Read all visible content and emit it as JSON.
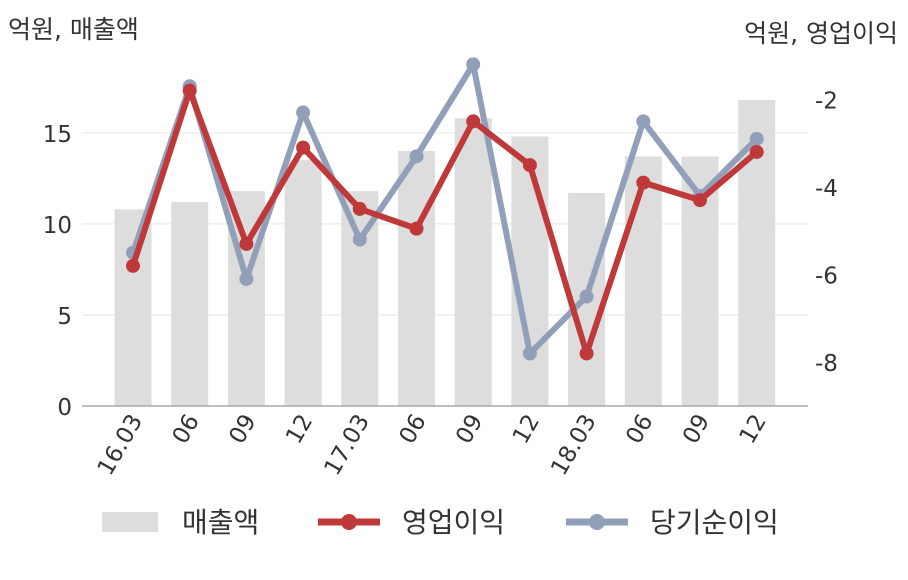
{
  "chart_data": {
    "type": "bar",
    "left_axis_label": "억원, 매출액",
    "right_axis_label": "억원, 영업이익",
    "categories": [
      "16.03",
      "06",
      "09",
      "12",
      "17.03",
      "06",
      "09",
      "12",
      "18.03",
      "06",
      "09",
      "12"
    ],
    "y_left": {
      "min": 0,
      "max": 19,
      "ticks": [
        0,
        5,
        10,
        15
      ]
    },
    "y_right": {
      "min": -9,
      "max": -1.1,
      "ticks": [
        -8,
        -6,
        -4,
        -2
      ]
    },
    "grid": true,
    "legend_position": "bottom",
    "series": [
      {
        "name": "매출액",
        "kind": "bar",
        "axis": "left",
        "color": "#dddddd",
        "values": [
          10.8,
          11.2,
          11.8,
          13.5,
          11.8,
          14.0,
          15.8,
          14.8,
          11.7,
          13.7,
          13.7,
          16.8
        ]
      },
      {
        "name": "영업이익",
        "kind": "line",
        "axis": "right",
        "color": "#c0393a",
        "values": [
          -5.8,
          -1.8,
          -5.3,
          -3.1,
          -4.5,
          -4.95,
          -2.5,
          -3.5,
          -7.8,
          -3.9,
          -4.3,
          -3.2
        ]
      },
      {
        "name": "당기순이익",
        "kind": "line",
        "axis": "right",
        "color": "#929fb9",
        "values": [
          -5.5,
          -1.7,
          -6.1,
          -2.3,
          -5.2,
          -3.3,
          -1.2,
          -7.8,
          -6.5,
          -2.5,
          -4.2,
          -2.9
        ]
      }
    ]
  }
}
